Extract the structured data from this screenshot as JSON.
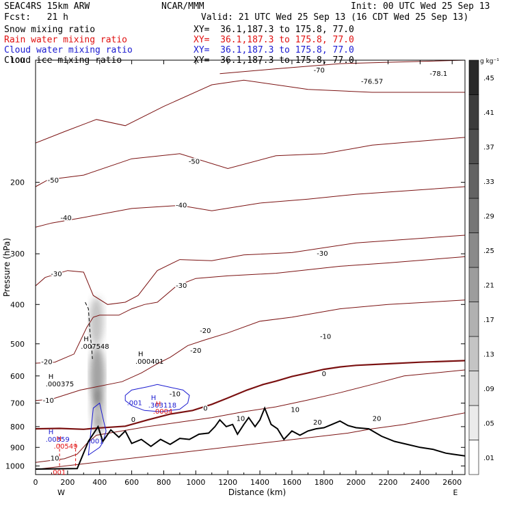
{
  "header": {
    "line1_left": "SEAC4RS 15km ARW",
    "line1_center": "NCAR/MMM",
    "line1_right": "Init: 00 UTC Wed 25 Sep 13",
    "line2_left": "Fcst:   21 h",
    "line2_right": "Valid: 21 UTC Wed 25 Sep 13 (16 CDT Wed 25 Sep 13)",
    "fields": [
      {
        "label": "Snow mixing ratio",
        "xy": "XY=  36.1,187.3 to 175.8, 77.0",
        "color": "#000000"
      },
      {
        "label": "Rain water mixing ratio",
        "xy": "XY=  36.1,187.3 to 175.8, 77.0",
        "color": "#e01010"
      },
      {
        "label": "Cloud water mixing ratio",
        "xy": "XY=  36.1,187.3 to 175.8, 77.0",
        "color": "#1a1ad0"
      },
      {
        "label": "Cloud ice mixing ratio",
        "xy": "XY=  36.1,187.3 to 175.8, 77.0",
        "color": "#000000"
      }
    ]
  },
  "chart_data": {
    "type": "cross-section",
    "xlabel": "Distance (km)",
    "ylabel": "Pressure (hPa)",
    "xlim": [
      0,
      2680
    ],
    "ylim": [
      1050,
      100
    ],
    "x_ticks": [
      "0",
      "200",
      "400",
      "600",
      "800",
      "1000",
      "1200",
      "1400",
      "1600",
      "1800",
      "2000",
      "2200",
      "2400",
      "2600"
    ],
    "y_ticks": [
      "100",
      "200",
      "300",
      "400",
      "500",
      "600",
      "700",
      "800",
      "900",
      "1000"
    ],
    "end_labels": {
      "left": "W",
      "right": "E"
    },
    "colorbar": {
      "unit": "g kg⁻¹",
      "tick_labels": [
        ".01",
        ".05",
        ".09",
        ".13",
        ".17",
        ".21",
        ".25",
        ".29",
        ".33",
        ".37",
        ".41",
        ".45"
      ]
    },
    "terrain": [
      [
        0,
        1018
      ],
      [
        260,
        1015
      ],
      [
        330,
        870
      ],
      [
        390,
        800
      ],
      [
        420,
        870
      ],
      [
        470,
        815
      ],
      [
        520,
        850
      ],
      [
        560,
        820
      ],
      [
        600,
        880
      ],
      [
        660,
        860
      ],
      [
        720,
        895
      ],
      [
        780,
        860
      ],
      [
        840,
        885
      ],
      [
        900,
        855
      ],
      [
        960,
        860
      ],
      [
        1020,
        835
      ],
      [
        1080,
        830
      ],
      [
        1120,
        800
      ],
      [
        1150,
        770
      ],
      [
        1190,
        800
      ],
      [
        1230,
        790
      ],
      [
        1260,
        835
      ],
      [
        1300,
        790
      ],
      [
        1330,
        760
      ],
      [
        1370,
        800
      ],
      [
        1400,
        770
      ],
      [
        1430,
        720
      ],
      [
        1470,
        790
      ],
      [
        1510,
        810
      ],
      [
        1550,
        860
      ],
      [
        1600,
        820
      ],
      [
        1650,
        840
      ],
      [
        1700,
        820
      ],
      [
        1750,
        810
      ],
      [
        1800,
        805
      ],
      [
        1850,
        790
      ],
      [
        1900,
        775
      ],
      [
        1950,
        795
      ],
      [
        2000,
        805
      ],
      [
        2080,
        810
      ],
      [
        2160,
        845
      ],
      [
        2240,
        870
      ],
      [
        2320,
        885
      ],
      [
        2400,
        900
      ],
      [
        2480,
        910
      ],
      [
        2560,
        930
      ],
      [
        2600,
        935
      ],
      [
        2680,
        945
      ]
    ],
    "temperature_contours": [
      {
        "level": "-70",
        "points": [
          [
            1150,
            108
          ],
          [
            1500,
            105
          ],
          [
            1900,
            102
          ],
          [
            2680,
            100
          ]
        ],
        "labels": [
          [
            1770,
            106
          ]
        ]
      },
      {
        "level": "-76.57",
        "points": [],
        "labels": [
          [
            2100,
            113
          ]
        ]
      },
      {
        "level": "-78.1",
        "points": [],
        "labels": [
          [
            2515,
            108
          ]
        ]
      },
      {
        "level": "-60",
        "points": [
          [
            0,
            160
          ],
          [
            180,
            150
          ],
          [
            380,
            140
          ],
          [
            560,
            145
          ],
          [
            800,
            130
          ],
          [
            1100,
            115
          ],
          [
            1300,
            112
          ],
          [
            1700,
            118
          ],
          [
            2100,
            120
          ],
          [
            2680,
            120
          ]
        ],
        "labels": []
      },
      {
        "level": "-50",
        "points": [
          [
            0,
            205
          ],
          [
            80,
            197
          ],
          [
            300,
            192
          ],
          [
            600,
            175
          ],
          [
            900,
            170
          ],
          [
            1200,
            185
          ],
          [
            1500,
            172
          ],
          [
            1800,
            170
          ],
          [
            2100,
            162
          ],
          [
            2680,
            155
          ]
        ],
        "labels": [
          [
            110,
            198
          ],
          [
            990,
            178
          ]
        ]
      },
      {
        "level": "-40",
        "points": [
          [
            0,
            258
          ],
          [
            100,
            252
          ],
          [
            280,
            245
          ],
          [
            600,
            232
          ],
          [
            900,
            228
          ],
          [
            1100,
            235
          ],
          [
            1400,
            225
          ],
          [
            1700,
            220
          ],
          [
            2000,
            214
          ],
          [
            2680,
            205
          ]
        ],
        "labels": [
          [
            190,
            245
          ],
          [
            910,
            228
          ]
        ]
      },
      {
        "level": "-30",
        "points": [
          [
            0,
            360
          ],
          [
            60,
            343
          ],
          [
            200,
            330
          ],
          [
            300,
            333
          ],
          [
            360,
            380
          ],
          [
            450,
            400
          ],
          [
            560,
            395
          ],
          [
            640,
            380
          ],
          [
            760,
            330
          ],
          [
            900,
            310
          ],
          [
            1100,
            312
          ],
          [
            1300,
            302
          ],
          [
            1600,
            298
          ],
          [
            2000,
            282
          ],
          [
            2680,
            270
          ]
        ],
        "labels": [
          [
            130,
            337
          ],
          [
            910,
            360
          ],
          [
            1790,
            300
          ]
        ]
      },
      {
        "level": "-20",
        "points": [
          [
            0,
            558
          ],
          [
            120,
            555
          ],
          [
            240,
            530
          ],
          [
            320,
            455
          ],
          [
            360,
            430
          ],
          [
            400,
            425
          ],
          [
            520,
            425
          ],
          [
            600,
            410
          ],
          [
            680,
            400
          ],
          [
            760,
            395
          ],
          [
            880,
            360
          ],
          [
            1000,
            345
          ],
          [
            1200,
            340
          ],
          [
            1500,
            335
          ],
          [
            1900,
            322
          ],
          [
            2200,
            316
          ],
          [
            2680,
            305
          ]
        ],
        "labels": [
          [
            70,
            555
          ],
          [
            1000,
            520
          ],
          [
            1060,
            465
          ]
        ]
      },
      {
        "level": "-10",
        "points": [
          [
            0,
            690
          ],
          [
            100,
            685
          ],
          [
            280,
            650
          ],
          [
            540,
            620
          ],
          [
            660,
            590
          ],
          [
            760,
            560
          ],
          [
            840,
            540
          ],
          [
            950,
            505
          ],
          [
            1050,
            490
          ],
          [
            1200,
            470
          ],
          [
            1400,
            440
          ],
          [
            1600,
            430
          ],
          [
            1900,
            410
          ],
          [
            2200,
            400
          ],
          [
            2680,
            390
          ]
        ],
        "labels": [
          [
            80,
            690
          ],
          [
            870,
            665
          ],
          [
            1810,
            480
          ]
        ]
      },
      {
        "level": "0",
        "points": [
          [
            0,
            810
          ],
          [
            150,
            808
          ],
          [
            300,
            812
          ],
          [
            400,
            806
          ],
          [
            560,
            798
          ],
          [
            700,
            770
          ],
          [
            840,
            745
          ],
          [
            980,
            730
          ],
          [
            1100,
            705
          ],
          [
            1200,
            680
          ],
          [
            1320,
            650
          ],
          [
            1420,
            630
          ],
          [
            1500,
            618
          ],
          [
            1600,
            602
          ],
          [
            1700,
            590
          ],
          [
            1800,
            578
          ],
          [
            1900,
            570
          ],
          [
            2000,
            565
          ],
          [
            2200,
            560
          ],
          [
            2400,
            555
          ],
          [
            2680,
            550
          ]
        ],
        "labels": [
          [
            610,
            770
          ],
          [
            1060,
            722
          ],
          [
            1800,
            593
          ]
        ]
      },
      {
        "level": "10",
        "points": [
          [
            0,
            980
          ],
          [
            180,
            960
          ],
          [
            260,
            935
          ],
          [
            320,
            880
          ],
          [
            380,
            840
          ],
          [
            500,
            825
          ],
          [
            700,
            800
          ],
          [
            900,
            780
          ],
          [
            1100,
            760
          ],
          [
            1300,
            735
          ],
          [
            1500,
            715
          ],
          [
            1700,
            688
          ],
          [
            1900,
            660
          ],
          [
            2100,
            630
          ],
          [
            2300,
            600
          ],
          [
            2680,
            580
          ]
        ],
        "labels": [
          [
            120,
            958
          ],
          [
            1280,
            765
          ],
          [
            1620,
            727
          ]
        ]
      },
      {
        "level": "20",
        "points": [
          [
            0,
            1020
          ],
          [
            1950,
            830
          ],
          [
            2100,
            810
          ],
          [
            2300,
            790
          ],
          [
            2680,
            740
          ]
        ],
        "labels": [
          [
            1760,
            782
          ],
          [
            2130,
            765
          ]
        ]
      }
    ],
    "rain_water_contours": [
      {
        "level": ".001",
        "points": [
          [
            150,
            1000
          ],
          [
            150,
            878
          ]
        ],
        "labels": [
          [
            150,
            1002
          ]
        ]
      },
      {
        "level": ".001",
        "points": [
          [
            250,
            1000
          ],
          [
            250,
            870
          ]
        ],
        "labels": []
      }
    ],
    "cloud_water_contours": [
      {
        "level": ".001",
        "points": [
          [
            560,
            670
          ],
          [
            600,
            650
          ],
          [
            700,
            638
          ],
          [
            760,
            630
          ],
          [
            840,
            640
          ],
          [
            920,
            650
          ],
          [
            960,
            670
          ],
          [
            950,
            700
          ],
          [
            900,
            725
          ],
          [
            780,
            735
          ],
          [
            680,
            730
          ],
          [
            600,
            710
          ],
          [
            560,
            690
          ]
        ],
        "labels": [
          [
            570,
            700
          ]
        ]
      },
      {
        "level": ".001",
        "points": [
          [
            330,
            940
          ],
          [
            360,
            720
          ],
          [
            400,
            700
          ],
          [
            420,
            760
          ],
          [
            440,
            820
          ],
          [
            420,
            875
          ],
          [
            400,
            900
          ]
        ],
        "labels": [
          [
            330,
            870
          ]
        ]
      }
    ],
    "cloud_ice_contours": [
      {
        "level": "",
        "points": [
          [
            310,
            395
          ],
          [
            330,
            410
          ],
          [
            340,
            470
          ],
          [
            350,
            510
          ],
          [
            355,
            545
          ]
        ],
        "labels": []
      }
    ],
    "extrema": [
      {
        "label": "H",
        "value": ".007548",
        "x": 300,
        "y": 493,
        "color": "#000000"
      },
      {
        "label": "H",
        "value": ".000401",
        "x": 640,
        "y": 537,
        "color": "#000000"
      },
      {
        "label": "H",
        "value": ".000375",
        "x": 80,
        "y": 610,
        "color": "#000000"
      },
      {
        "label": "H",
        "value": ".303118",
        "x": 720,
        "y": 688,
        "color": "#1a1ad0"
      },
      {
        "label": "H",
        "value": ".00359",
        "x": 80,
        "y": 835,
        "color": "#1a1ad0"
      },
      {
        "label": "H",
        "value": ".00549",
        "x": 130,
        "y": 868,
        "color": "#e01010"
      },
      {
        "label": "H",
        "value": ".0004",
        "x": 750,
        "y": 712,
        "color": "#e01010"
      }
    ],
    "snow_shading": [
      {
        "x": 380,
        "p": 440,
        "w": 55,
        "h": 120,
        "a": 0.35
      },
      {
        "x": 385,
        "p": 600,
        "w": 60,
        "h": 200,
        "a": 0.55
      },
      {
        "x": 390,
        "p": 720,
        "w": 50,
        "h": 150,
        "a": 0.4
      },
      {
        "x": 395,
        "p": 800,
        "w": 40,
        "h": 80,
        "a": 0.3
      }
    ]
  }
}
